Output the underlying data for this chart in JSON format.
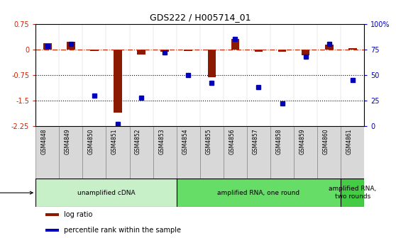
{
  "title": "GDS222 / H005714_01",
  "samples": [
    "GSM4848",
    "GSM4849",
    "GSM4850",
    "GSM4851",
    "GSM4852",
    "GSM4853",
    "GSM4854",
    "GSM4855",
    "GSM4856",
    "GSM4857",
    "GSM4858",
    "GSM4859",
    "GSM4860",
    "GSM4861"
  ],
  "log_ratio": [
    0.18,
    0.22,
    -0.05,
    -1.85,
    -0.15,
    -0.06,
    -0.05,
    -0.82,
    0.3,
    -0.06,
    -0.07,
    -0.18,
    0.13,
    0.04
  ],
  "percentile_rank": [
    78,
    80,
    30,
    2,
    28,
    72,
    50,
    42,
    85,
    38,
    22,
    68,
    80,
    45
  ],
  "ylim_left": [
    -2.25,
    0.75
  ],
  "ylim_right": [
    0,
    100
  ],
  "yticks_left": [
    0.75,
    0,
    -0.75,
    -1.5,
    -2.25
  ],
  "yticks_right": [
    100,
    75,
    50,
    25,
    0
  ],
  "dotted_lines": [
    -0.75,
    -1.5
  ],
  "bar_color_red": "#8B1A00",
  "bar_color_blue": "#0000BB",
  "ref_line_color": "#cc2200",
  "protocol_groups": [
    {
      "label": "unamplified cDNA",
      "start": 0,
      "end": 5,
      "color": "#c8f0c8"
    },
    {
      "label": "amplified RNA, one round",
      "start": 6,
      "end": 12,
      "color": "#66dd66"
    },
    {
      "label": "amplified RNA,\ntwo rounds",
      "start": 13,
      "end": 13,
      "color": "#44cc44"
    }
  ],
  "legend_items": [
    {
      "label": "log ratio",
      "color": "#8B1A00"
    },
    {
      "label": "percentile rank within the sample",
      "color": "#0000BB"
    }
  ],
  "sample_box_color": "#d8d8d8",
  "sample_box_edge": "#888888"
}
